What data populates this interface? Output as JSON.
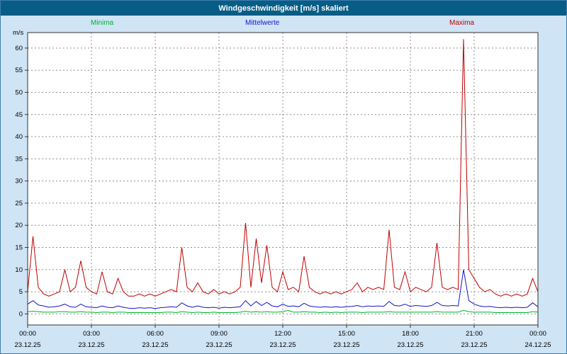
{
  "window": {
    "title": "Windgeschwindigkeit [m/s] skaliert"
  },
  "colors": {
    "title_bar": "#085d86",
    "title_text": "#ffffff",
    "background": "#cfe4f5",
    "plot_background": "#ffffff",
    "grid": "#8f8f8f",
    "axis": "#333333"
  },
  "legend": [
    {
      "label": "Minima",
      "color": "#00b22d"
    },
    {
      "label": "Mittelwerte",
      "color": "#1414cc"
    },
    {
      "label": "Maxima",
      "color": "#c00000"
    }
  ],
  "chart_data": {
    "type": "line",
    "title": "Windgeschwindigkeit [m/s] skaliert",
    "ylabel": "m/s",
    "xlabel": "",
    "ylim": [
      0,
      60
    ],
    "y_ticks": [
      0,
      5,
      10,
      15,
      20,
      25,
      30,
      35,
      40,
      45,
      50,
      55,
      60
    ],
    "grid": "dashed",
    "legend_position": "top",
    "step_hours": 0.25,
    "x_range_hours": [
      0,
      24
    ],
    "x_ticks": [
      {
        "hour": 0,
        "time": "00:00",
        "date": "23.12.25"
      },
      {
        "hour": 3,
        "time": "03:00",
        "date": "23.12.25"
      },
      {
        "hour": 6,
        "time": "06:00",
        "date": "23.12.25"
      },
      {
        "hour": 9,
        "time": "09:00",
        "date": "23.12.25"
      },
      {
        "hour": 12,
        "time": "12:00",
        "date": "23.12.25"
      },
      {
        "hour": 15,
        "time": "15:00",
        "date": "23.12.25"
      },
      {
        "hour": 18,
        "time": "18:00",
        "date": "23.12.25"
      },
      {
        "hour": 21,
        "time": "21:00",
        "date": "23.12.25"
      },
      {
        "hour": 24,
        "time": "00:00",
        "date": "24.12.25"
      }
    ],
    "series": [
      {
        "name": "Maxima",
        "color": "#c00000",
        "values": [
          5,
          17.5,
          6,
          4.5,
          4,
          4.5,
          5,
          10,
          5,
          6,
          12,
          6,
          5,
          4.5,
          9.5,
          5,
          4.5,
          8,
          5,
          4,
          4,
          4.5,
          4,
          4.5,
          4,
          4.5,
          5,
          5.5,
          5,
          15,
          6,
          5,
          7,
          5,
          4.5,
          5.5,
          4.5,
          5,
          4.5,
          5,
          6,
          20.5,
          6,
          17,
          7,
          15.5,
          6,
          5,
          9.5,
          5.5,
          6,
          5,
          13,
          6,
          5,
          4.5,
          5,
          4.5,
          5,
          4.5,
          5,
          5.5,
          7,
          5,
          6,
          5.5,
          6,
          5.5,
          19,
          6,
          5.5,
          9.5,
          5,
          6,
          5.5,
          5,
          6,
          16,
          6,
          5.5,
          6,
          5.5,
          62,
          10,
          8,
          6,
          5,
          5.5,
          4.5,
          4,
          4.5,
          4,
          4.5,
          4,
          4.5,
          8,
          5
        ]
      },
      {
        "name": "Mittelwerte",
        "color": "#1414cc",
        "values": [
          2.2,
          3,
          2,
          1.8,
          1.5,
          1.6,
          1.8,
          2.2,
          1.6,
          1.5,
          2.2,
          1.6,
          1.5,
          1.4,
          1.8,
          1.5,
          1.4,
          1.8,
          1.5,
          1.3,
          1.2,
          1.4,
          1.3,
          1.4,
          1.2,
          1.4,
          1.5,
          1.6,
          1.5,
          2.5,
          1.8,
          1.5,
          1.8,
          1.5,
          1.4,
          1.5,
          1.3,
          1.5,
          1.4,
          1.5,
          1.6,
          3,
          1.8,
          2.8,
          1.9,
          2.6,
          1.8,
          1.6,
          2.2,
          1.7,
          1.8,
          1.6,
          2.4,
          1.8,
          1.6,
          1.5,
          1.6,
          1.5,
          1.6,
          1.5,
          1.6,
          1.7,
          1.9,
          1.6,
          1.8,
          1.7,
          1.8,
          1.7,
          2.8,
          1.9,
          1.8,
          2.2,
          1.7,
          1.9,
          1.8,
          1.7,
          1.9,
          2.6,
          1.9,
          1.8,
          1.9,
          1.8,
          10,
          3,
          2.2,
          1.8,
          1.6,
          1.7,
          1.5,
          1.4,
          1.5,
          1.4,
          1.5,
          1.4,
          1.5,
          2.5,
          1.6
        ]
      },
      {
        "name": "Minima",
        "color": "#00b22d",
        "values": [
          0.5,
          0.6,
          0.5,
          0.4,
          0.4,
          0.4,
          0.5,
          0.5,
          0.4,
          0.4,
          0.5,
          0.4,
          0.4,
          0.3,
          0.4,
          0.4,
          0.3,
          0.4,
          0.4,
          0.3,
          0.3,
          0.3,
          0.3,
          0.3,
          0.3,
          0.3,
          0.4,
          0.4,
          0.3,
          0.5,
          0.4,
          0.3,
          0.4,
          0.3,
          0.3,
          0.4,
          0.3,
          0.3,
          0.3,
          0.3,
          0.4,
          0.6,
          0.4,
          0.5,
          0.4,
          0.5,
          0.4,
          0.4,
          0.5,
          0.8,
          0.4,
          0.4,
          0.5,
          0.4,
          0.4,
          0.3,
          0.4,
          0.3,
          0.4,
          0.3,
          0.4,
          0.4,
          0.4,
          0.3,
          0.4,
          0.4,
          0.4,
          0.4,
          0.5,
          0.4,
          0.4,
          0.4,
          0.4,
          0.4,
          0.4,
          0.4,
          0.4,
          0.5,
          0.4,
          0.4,
          0.4,
          0.4,
          0.8,
          0.5,
          0.4,
          0.4,
          0.4,
          0.4,
          0.3,
          0.3,
          0.3,
          0.3,
          0.3,
          0.3,
          0.3,
          0.5,
          0.4
        ]
      }
    ]
  }
}
